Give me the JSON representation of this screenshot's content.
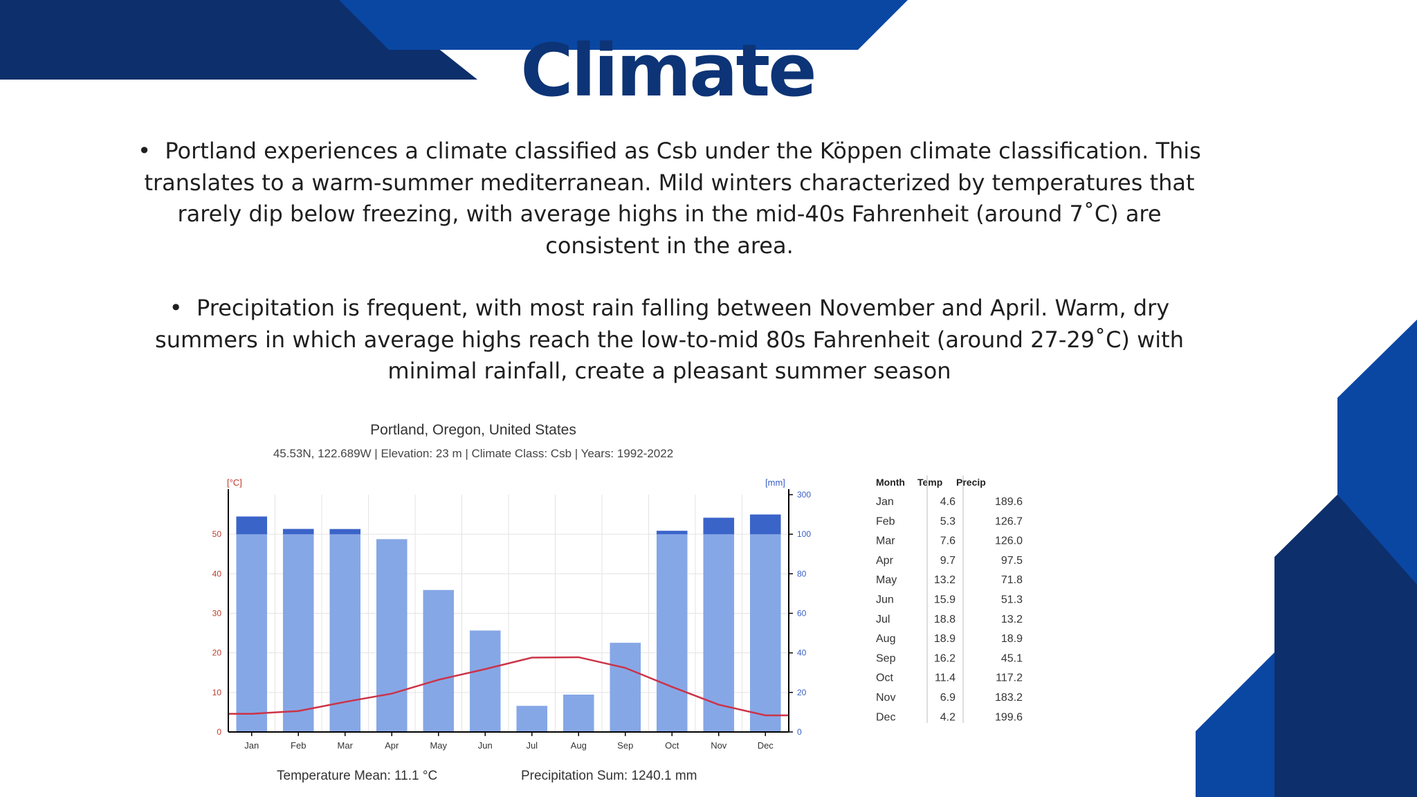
{
  "slide": {
    "title": "Climate",
    "bullets": [
      "Portland experiences a climate classified as Csb under the Köppen climate classification. This translates to a warm-summer mediterranean. Mild winters characterized by temperatures that rarely dip below freezing, with average highs in the mid-40s Fahrenheit (around 7˚C) are consistent in the area.",
      "Precipitation is frequent, with most rain falling between November and April. Warm, dry summers in which average highs reach the low-to-mid 80s Fahrenheit (around 27-29˚C) with minimal rainfall, create a pleasant summer season"
    ],
    "bullet_glyph": "•"
  },
  "colors": {
    "dark_blue": "#0d2f6b",
    "royal_blue": "#0a47a3",
    "bar": "#86a7e6",
    "bar_top": "#3b64c9",
    "temp_line": "#cc3347",
    "title": "#0d3476"
  },
  "chart_data": {
    "type": "bar",
    "title": "Portland, Oregon, United States",
    "subtitle": "45.53N, 122.689W | Elevation: 23 m | Climate Class: Csb | Years: 1992-2022",
    "categories": [
      "Jan",
      "Feb",
      "Mar",
      "Apr",
      "May",
      "Jun",
      "Jul",
      "Aug",
      "Sep",
      "Oct",
      "Nov",
      "Dec"
    ],
    "series": [
      {
        "name": "Precip",
        "unit": "[mm]",
        "axis": "right",
        "values": [
          189.6,
          126.7,
          126.0,
          97.5,
          71.8,
          51.3,
          13.2,
          18.9,
          45.1,
          117.2,
          183.2,
          199.6
        ]
      },
      {
        "name": "Temp",
        "unit": "[°C]",
        "axis": "left",
        "type": "line",
        "values": [
          4.6,
          5.3,
          7.6,
          9.7,
          13.2,
          15.9,
          18.8,
          18.9,
          16.2,
          11.4,
          6.9,
          4.2
        ]
      }
    ],
    "left_axis": {
      "label": "[°C]",
      "ticks": [
        0,
        10,
        20,
        30,
        40,
        50
      ],
      "range": [
        0,
        60
      ]
    },
    "right_axis": {
      "label": "[mm]",
      "ticks": [
        0,
        20,
        40,
        60,
        80,
        100,
        300
      ],
      "tick_labels": [
        "0",
        "20",
        "40",
        "60",
        "80",
        "100",
        "300"
      ]
    },
    "grid": true,
    "table": {
      "headers": [
        "Month",
        "Temp",
        "Precip"
      ],
      "rows": [
        [
          "Jan",
          "4.6",
          "189.6"
        ],
        [
          "Feb",
          "5.3",
          "126.7"
        ],
        [
          "Mar",
          "7.6",
          "126.0"
        ],
        [
          "Apr",
          "9.7",
          "97.5"
        ],
        [
          "May",
          "13.2",
          "71.8"
        ],
        [
          "Jun",
          "15.9",
          "51.3"
        ],
        [
          "Jul",
          "18.8",
          "13.2"
        ],
        [
          "Aug",
          "18.9",
          "18.9"
        ],
        [
          "Sep",
          "16.2",
          "45.1"
        ],
        [
          "Oct",
          "11.4",
          "117.2"
        ],
        [
          "Nov",
          "6.9",
          "183.2"
        ],
        [
          "Dec",
          "4.2",
          "199.6"
        ]
      ]
    },
    "footer": {
      "temperature_mean": "Temperature Mean: 11.1 °C",
      "precipitation_sum": "Precipitation Sum: 1240.1 mm"
    }
  }
}
